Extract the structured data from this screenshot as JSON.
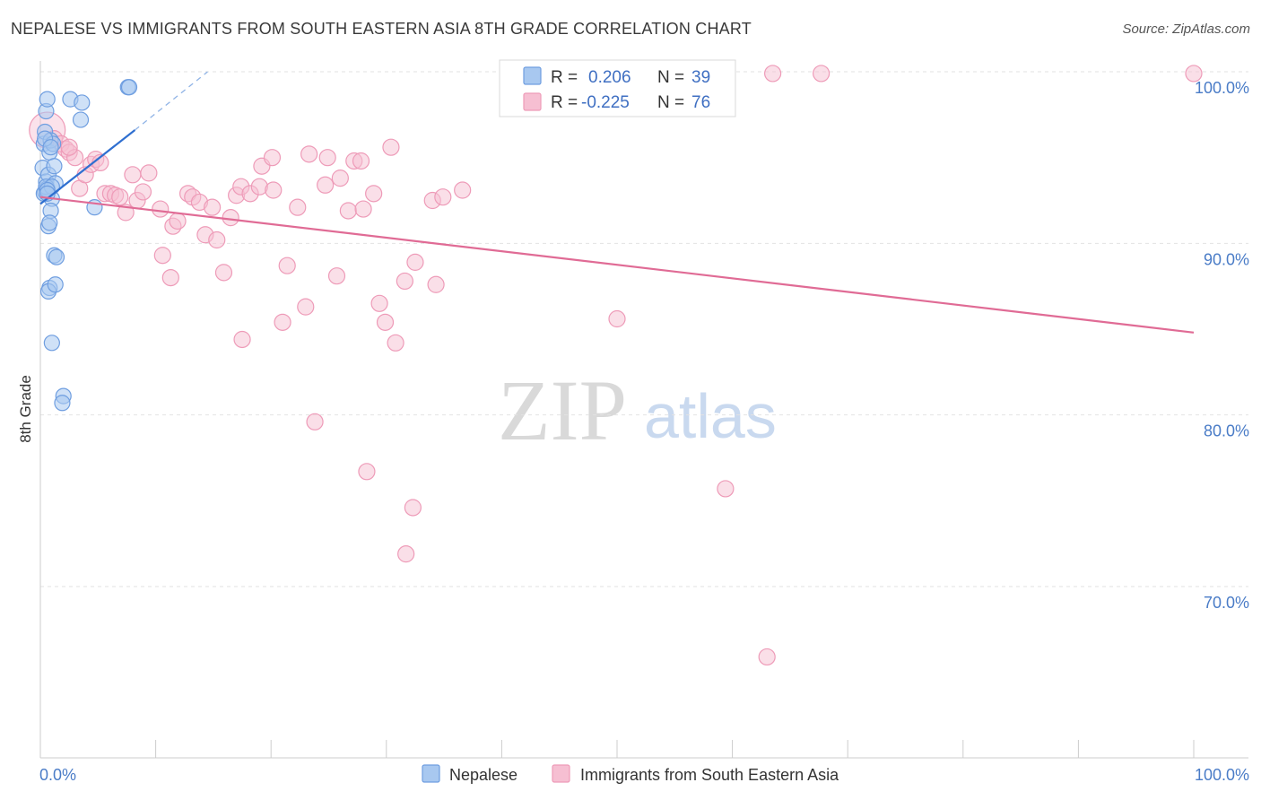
{
  "title": "NEPALESE VS IMMIGRANTS FROM SOUTH EASTERN ASIA 8TH GRADE CORRELATION CHART",
  "source": "Source: ZipAtlas.com",
  "watermark": {
    "zip": "ZIP",
    "atlas": "atlas"
  },
  "colors": {
    "blue_fill": "#a8c8f0",
    "blue_stroke": "#6f9ee0",
    "blue_line": "#2f6fd0",
    "pink_fill": "#f6bfd2",
    "pink_stroke": "#ee9bb8",
    "pink_line": "#e06b95",
    "grid": "#e2e2e2",
    "axis_label": "#4a7cc7"
  },
  "legend": {
    "r_label": "R =",
    "n_label": "N =",
    "series1": {
      "r": "0.206",
      "n": "39"
    },
    "series2": {
      "r": "-0.225",
      "n": "76"
    }
  },
  "chart_data": {
    "type": "scatter",
    "title": "NEPALESE VS IMMIGRANTS FROM SOUTH EASTERN ASIA 8TH GRADE CORRELATION CHART",
    "xlabel": "",
    "ylabel": "8th Grade",
    "xlim": [
      0,
      100
    ],
    "ylim": [
      60,
      102
    ],
    "x_tick_labels": [
      "0.0%",
      "100.0%"
    ],
    "y_ticks": [
      70,
      80,
      90,
      100
    ],
    "y_tick_labels": [
      "70.0%",
      "80.0%",
      "90.0%",
      "100.0%"
    ],
    "legend_position": "top-center",
    "series": [
      {
        "name": "Nepalese",
        "color": "#a8c8f0",
        "r": 0.206,
        "n": 39,
        "trend": {
          "x": [
            0,
            8.2
          ],
          "y": [
            92.3,
            96.6
          ],
          "dashed_to": [
            14.5,
            100.0
          ]
        },
        "points": [
          [
            0.2,
            94.4
          ],
          [
            0.3,
            95.8
          ],
          [
            0.4,
            96.5
          ],
          [
            0.5,
            97.7
          ],
          [
            0.6,
            98.4
          ],
          [
            0.4,
            93.0
          ],
          [
            0.5,
            93.6
          ],
          [
            0.6,
            93.2
          ],
          [
            0.7,
            94.0
          ],
          [
            0.8,
            95.3
          ],
          [
            0.9,
            96.0
          ],
          [
            1.1,
            95.8
          ],
          [
            1.2,
            94.5
          ],
          [
            1.0,
            92.6
          ],
          [
            0.9,
            91.9
          ],
          [
            0.7,
            91.0
          ],
          [
            0.8,
            91.2
          ],
          [
            1.3,
            93.5
          ],
          [
            0.3,
            92.9
          ],
          [
            2.6,
            98.4
          ],
          [
            3.6,
            98.2
          ],
          [
            3.5,
            97.2
          ],
          [
            7.6,
            99.1
          ],
          [
            7.7,
            99.1
          ],
          [
            4.7,
            92.1
          ],
          [
            1.2,
            89.3
          ],
          [
            1.4,
            89.2
          ],
          [
            0.8,
            87.4
          ],
          [
            0.7,
            87.2
          ],
          [
            1.3,
            87.6
          ],
          [
            1.0,
            84.2
          ],
          [
            2.0,
            81.1
          ],
          [
            1.9,
            80.7
          ],
          [
            0.5,
            93.3
          ],
          [
            1.0,
            93.3
          ],
          [
            0.6,
            93.1
          ],
          [
            0.4,
            96.1
          ],
          [
            0.9,
            95.6
          ],
          [
            0.6,
            92.9
          ]
        ]
      },
      {
        "name": "Immigrants from South Eastern Asia",
        "color": "#f6bfd2",
        "r": -0.225,
        "n": 76,
        "trend": {
          "x": [
            0,
            100
          ],
          "y": [
            92.7,
            84.8
          ]
        },
        "points": [
          [
            0.6,
            96.6
          ],
          [
            1.2,
            96.1
          ],
          [
            1.8,
            95.8
          ],
          [
            2.2,
            95.5
          ],
          [
            2.5,
            95.3
          ],
          [
            3.0,
            95.0
          ],
          [
            3.4,
            93.2
          ],
          [
            3.9,
            94.0
          ],
          [
            4.4,
            94.6
          ],
          [
            4.8,
            94.9
          ],
          [
            5.2,
            94.7
          ],
          [
            5.6,
            92.9
          ],
          [
            6.1,
            92.9
          ],
          [
            6.5,
            92.8
          ],
          [
            6.9,
            92.7
          ],
          [
            7.4,
            91.8
          ],
          [
            8.0,
            94.0
          ],
          [
            8.4,
            92.5
          ],
          [
            8.9,
            93.0
          ],
          [
            9.4,
            94.1
          ],
          [
            10.4,
            92.0
          ],
          [
            11.5,
            91.0
          ],
          [
            11.9,
            91.3
          ],
          [
            12.8,
            92.9
          ],
          [
            13.2,
            92.7
          ],
          [
            13.8,
            92.4
          ],
          [
            14.3,
            90.5
          ],
          [
            14.9,
            92.1
          ],
          [
            15.3,
            90.2
          ],
          [
            16.5,
            91.5
          ],
          [
            17.0,
            92.8
          ],
          [
            17.4,
            93.3
          ],
          [
            18.2,
            92.9
          ],
          [
            19.0,
            93.3
          ],
          [
            19.2,
            94.5
          ],
          [
            20.1,
            95.0
          ],
          [
            20.2,
            93.1
          ],
          [
            22.3,
            92.1
          ],
          [
            23.3,
            95.2
          ],
          [
            24.7,
            93.4
          ],
          [
            24.9,
            95.0
          ],
          [
            26.0,
            93.8
          ],
          [
            26.7,
            91.9
          ],
          [
            27.2,
            94.8
          ],
          [
            27.8,
            94.8
          ],
          [
            28.0,
            92.0
          ],
          [
            28.9,
            92.9
          ],
          [
            30.4,
            95.6
          ],
          [
            10.6,
            89.3
          ],
          [
            11.3,
            88.0
          ],
          [
            15.9,
            88.3
          ],
          [
            17.5,
            84.4
          ],
          [
            21.0,
            85.4
          ],
          [
            21.4,
            88.7
          ],
          [
            23.0,
            86.3
          ],
          [
            25.7,
            88.1
          ],
          [
            29.4,
            86.5
          ],
          [
            29.9,
            85.4
          ],
          [
            30.8,
            84.2
          ],
          [
            31.6,
            87.8
          ],
          [
            32.5,
            88.9
          ],
          [
            34.0,
            92.5
          ],
          [
            34.3,
            87.6
          ],
          [
            34.9,
            92.7
          ],
          [
            36.6,
            93.1
          ],
          [
            50.0,
            85.6
          ],
          [
            23.8,
            79.6
          ],
          [
            28.3,
            76.7
          ],
          [
            32.3,
            74.6
          ],
          [
            31.7,
            71.9
          ],
          [
            59.4,
            75.7
          ],
          [
            63.0,
            65.9
          ],
          [
            63.5,
            99.9
          ],
          [
            67.7,
            99.9
          ],
          [
            100.0,
            99.9
          ],
          [
            2.5,
            95.6
          ]
        ]
      }
    ]
  },
  "bottom_legend": {
    "item1": "Nepalese",
    "item2": "Immigrants from South Eastern Asia"
  }
}
